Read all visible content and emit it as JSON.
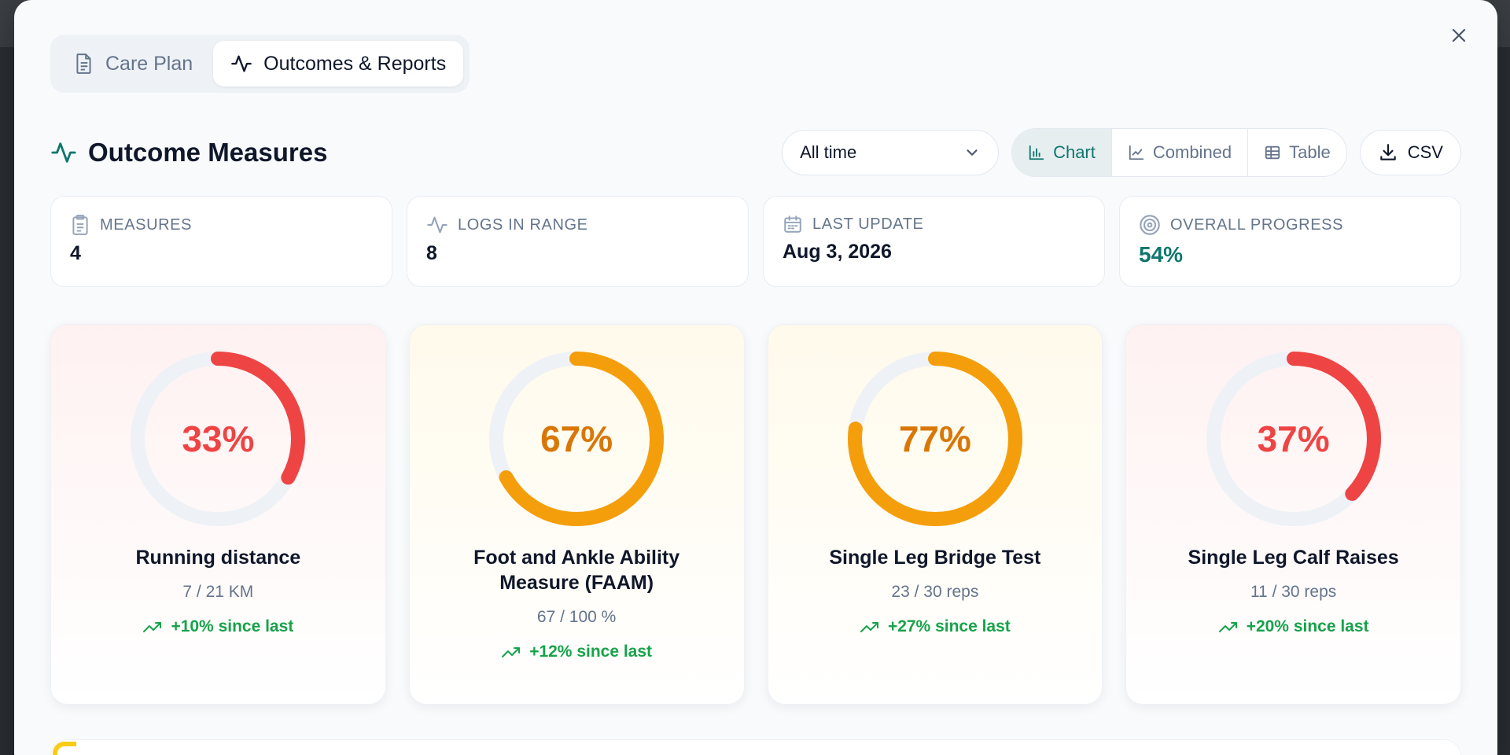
{
  "tabs": [
    {
      "label": "Care Plan",
      "icon": "document-icon",
      "active": false
    },
    {
      "label": "Outcomes & Reports",
      "icon": "activity-icon",
      "active": true
    }
  ],
  "section": {
    "title": "Outcome Measures",
    "icon": "activity-icon"
  },
  "controls": {
    "range_select": "All time",
    "views": [
      {
        "label": "Chart",
        "icon": "bar-chart-icon",
        "active": true
      },
      {
        "label": "Combined",
        "icon": "line-chart-icon",
        "active": false
      },
      {
        "label": "Table",
        "icon": "table-icon",
        "active": false
      }
    ],
    "csv_label": "CSV"
  },
  "stats": [
    {
      "label": "MEASURES",
      "value": "4",
      "icon": "clipboard-icon"
    },
    {
      "label": "LOGS IN RANGE",
      "value": "8",
      "icon": "activity-icon"
    },
    {
      "label": "LAST UPDATE",
      "value": "Aug 3, 2026",
      "icon": "calendar-icon"
    },
    {
      "label": "OVERALL PROGRESS",
      "value": "54%",
      "icon": "target-icon"
    }
  ],
  "colors": {
    "accent": "#0f766e",
    "low": "#ef4444",
    "mid": "#f59e0b",
    "low_text": "#ef4444",
    "mid_text": "#d97706",
    "positive": "#16a34a"
  },
  "measures": [
    {
      "title": "Running distance",
      "progress": 0.33,
      "percent_label": "33%",
      "detail": "7 / 21 KM",
      "delta": "+10% since last",
      "tone": "low"
    },
    {
      "title": "Foot and Ankle Ability Measure (FAAM)",
      "progress": 0.67,
      "percent_label": "67%",
      "detail": "67 / 100 %",
      "delta": "+12% since last",
      "tone": "mid"
    },
    {
      "title": "Single Leg Bridge Test",
      "progress": 0.77,
      "percent_label": "77%",
      "detail": "23 / 30 reps",
      "delta": "+27% since last",
      "tone": "mid"
    },
    {
      "title": "Single Leg Calf Raises",
      "progress": 0.37,
      "percent_label": "37%",
      "detail": "11 / 30 reps",
      "delta": "+20% since last",
      "tone": "low"
    }
  ]
}
